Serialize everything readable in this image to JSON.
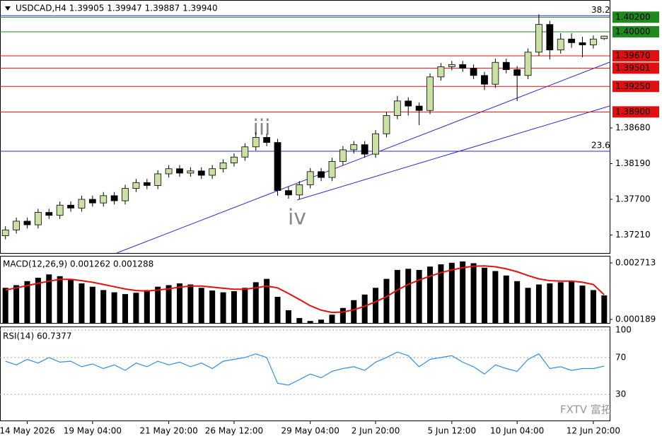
{
  "chart_data": [
    {
      "type": "candlestick",
      "title": "USDCAD,H4 1.39905 1.39947 1.39887 1.39940",
      "bull_color": "#c9e2a4",
      "bear_color": "#000000",
      "ylim": [
        1.36963,
        1.40436
      ],
      "yticks": [
        {
          "value": 1.3868,
          "label": "1.38680"
        },
        {
          "value": 1.3819,
          "label": "1.38190"
        },
        {
          "value": 1.377,
          "label": "1.37700"
        },
        {
          "value": 1.3721,
          "label": "1.37210"
        }
      ],
      "annotations": [
        "iii",
        "iv"
      ],
      "watermark": "FXTV 富拓",
      "levels": [
        {
          "value": 1.402,
          "label": "1.40200",
          "color": "#1e8a1e"
        },
        {
          "value": 1.4,
          "label": "1.40000",
          "color": "#1e8a1e"
        },
        {
          "value": 1.3967,
          "label": "1.39670",
          "color": "#e01010"
        },
        {
          "value": 1.39501,
          "label": "1.39501",
          "color": "#e01010"
        },
        {
          "value": 1.3925,
          "label": "1.39250",
          "color": "#e01010"
        },
        {
          "value": 1.389,
          "label": "1.38900",
          "color": "#e01010"
        }
      ],
      "fibo": [
        {
          "level": 38.2,
          "price": 1.4022
        },
        {
          "level": 23.6,
          "price": 1.3836
        }
      ],
      "fibo_color": "#2a2ad0",
      "categories": [
        null,
        null,
        "14 May 2026",
        null,
        null,
        null,
        null,
        null,
        "19 May 04:00",
        null,
        null,
        null,
        null,
        null,
        null,
        "21 May 20:00",
        null,
        null,
        null,
        null,
        null,
        "26 May 12:00",
        null,
        null,
        null,
        null,
        null,
        null,
        "29 May 04:00",
        null,
        null,
        null,
        null,
        null,
        "2 Jun 20:00",
        null,
        null,
        null,
        null,
        null,
        null,
        "5 Jun 12:00",
        null,
        null,
        null,
        null,
        null,
        "10 Jun 04:00",
        null,
        null,
        null,
        null,
        null,
        null,
        "12 Jun 20:00",
        null
      ],
      "open": [
        1.372,
        1.3728,
        1.374,
        1.3735,
        1.3752,
        1.3748,
        1.3762,
        1.3758,
        1.377,
        1.3765,
        1.3775,
        1.3768,
        1.3785,
        1.3793,
        1.3789,
        1.3805,
        1.3812,
        1.3806,
        1.3809,
        1.3803,
        1.3812,
        1.382,
        1.3828,
        1.3842,
        1.3855,
        1.3848,
        1.3782,
        1.3776,
        1.379,
        1.3808,
        1.38,
        1.3822,
        1.3838,
        1.3845,
        1.3832,
        1.386,
        1.3885,
        1.3905,
        1.3898,
        1.3892,
        1.3938,
        1.3952,
        1.3955,
        1.395,
        1.394,
        1.3928,
        1.3958,
        1.3948,
        1.394,
        1.3972,
        1.401,
        1.3975,
        1.399,
        1.3985,
        1.3982,
        1.39905
      ],
      "high": [
        1.3733,
        1.3745,
        1.3745,
        1.3757,
        1.3757,
        1.3767,
        1.3767,
        1.3775,
        1.3775,
        1.378,
        1.378,
        1.379,
        1.3798,
        1.3798,
        1.381,
        1.3817,
        1.3817,
        1.3814,
        1.3814,
        1.3817,
        1.3825,
        1.3833,
        1.3847,
        1.3862,
        1.386,
        1.3853,
        1.3787,
        1.3795,
        1.3813,
        1.3813,
        1.3827,
        1.3843,
        1.385,
        1.385,
        1.3865,
        1.389,
        1.3912,
        1.391,
        1.3903,
        1.3943,
        1.3957,
        1.396,
        1.396,
        1.3955,
        1.3945,
        1.3963,
        1.3963,
        1.3953,
        1.3977,
        1.4024,
        1.4015,
        1.3998,
        1.3998,
        1.3993,
        1.3995,
        1.39947
      ],
      "low": [
        1.3715,
        1.3723,
        1.373,
        1.373,
        1.3743,
        1.3743,
        1.3753,
        1.3753,
        1.376,
        1.376,
        1.3763,
        1.3763,
        1.378,
        1.3784,
        1.3784,
        1.38,
        1.3801,
        1.3801,
        1.3798,
        1.3798,
        1.3807,
        1.3815,
        1.3823,
        1.3837,
        1.3843,
        1.3775,
        1.3771,
        1.377,
        1.3785,
        1.3795,
        1.3795,
        1.3817,
        1.3833,
        1.3827,
        1.3827,
        1.3855,
        1.388,
        1.3885,
        1.3872,
        1.3887,
        1.3933,
        1.3947,
        1.3945,
        1.3935,
        1.392,
        1.3923,
        1.3943,
        1.3905,
        1.3935,
        1.3967,
        1.3962,
        1.397,
        1.3978,
        1.3965,
        1.3977,
        1.39887
      ],
      "close": [
        1.3728,
        1.374,
        1.3735,
        1.3752,
        1.3748,
        1.3762,
        1.3758,
        1.377,
        1.3765,
        1.3775,
        1.3768,
        1.3785,
        1.3793,
        1.3789,
        1.3805,
        1.3812,
        1.3806,
        1.3809,
        1.3803,
        1.3812,
        1.382,
        1.3828,
        1.3842,
        1.3855,
        1.3848,
        1.3782,
        1.3776,
        1.379,
        1.3808,
        1.38,
        1.3822,
        1.3838,
        1.3845,
        1.3832,
        1.386,
        1.3885,
        1.3905,
        1.3898,
        1.3892,
        1.3938,
        1.3952,
        1.3955,
        1.395,
        1.394,
        1.3928,
        1.3958,
        1.3948,
        1.394,
        1.3972,
        1.401,
        1.3975,
        1.399,
        1.3985,
        1.3982,
        1.399,
        1.3994
      ]
    },
    {
      "type": "macd",
      "title": "MACD(12,26,9) 0.001262 0.001288",
      "ylim": [
        3e-05,
        0.00303
      ],
      "yticks": [
        0.002713,
        0.000189
      ],
      "series": [
        {
          "name": "histogram",
          "color": "#000000",
          "values": [
            0.0016,
            0.00172,
            0.0019,
            0.00205,
            0.0022,
            0.00212,
            0.00195,
            0.0018,
            0.00165,
            0.0015,
            0.0014,
            0.00132,
            0.00138,
            0.0015,
            0.00165,
            0.00172,
            0.0018,
            0.00175,
            0.0016,
            0.00148,
            0.0014,
            0.00145,
            0.0016,
            0.00185,
            0.002,
            0.0012,
            0.0006,
            0.00025,
            0.00012,
            0.00018,
            0.0004,
            0.0007,
            0.00105,
            0.0013,
            0.0016,
            0.002,
            0.0024,
            0.00245,
            0.0024,
            0.00255,
            0.00265,
            0.00272,
            0.00278,
            0.0027,
            0.0025,
            0.00235,
            0.00215,
            0.0019,
            0.0016,
            0.00175,
            0.0018,
            0.00185,
            0.0019,
            0.0017,
            0.0015,
            0.001262
          ]
        },
        {
          "name": "signal",
          "color": "#e81010",
          "values": [
            0.0015,
            0.0016,
            0.0017,
            0.0018,
            0.0019,
            0.00198,
            0.00198,
            0.00192,
            0.00185,
            0.00175,
            0.00165,
            0.00155,
            0.00148,
            0.00146,
            0.0015,
            0.00156,
            0.00163,
            0.00168,
            0.00168,
            0.00163,
            0.00158,
            0.00154,
            0.00154,
            0.0016,
            0.00168,
            0.0016,
            0.00135,
            0.00108,
            0.0008,
            0.0006,
            0.0005,
            0.00052,
            0.00062,
            0.00078,
            0.00098,
            0.0012,
            0.0015,
            0.00175,
            0.00195,
            0.00212,
            0.00228,
            0.0024,
            0.0025,
            0.00257,
            0.00258,
            0.00254,
            0.00245,
            0.00232,
            0.00215,
            0.002,
            0.00192,
            0.0019,
            0.0019,
            0.00185,
            0.00175,
            0.001288
          ]
        }
      ]
    },
    {
      "type": "line",
      "title": "RSI(14) 60.7377",
      "ylim": [
        1.5,
        103.8
      ],
      "yticks": [
        100,
        70,
        30
      ],
      "color": "#2f8fe8",
      "values": [
        66,
        62,
        68,
        64,
        70,
        65,
        66,
        60,
        63,
        58,
        62,
        56,
        64,
        60,
        66,
        62,
        65,
        60,
        64,
        58,
        66,
        68,
        70,
        74,
        70,
        42,
        40,
        46,
        52,
        48,
        55,
        58,
        60,
        56,
        65,
        70,
        76,
        72,
        60,
        68,
        70,
        72,
        65,
        60,
        52,
        62,
        58,
        55,
        68,
        74,
        58,
        60,
        56,
        58,
        58,
        60.7377
      ]
    }
  ]
}
